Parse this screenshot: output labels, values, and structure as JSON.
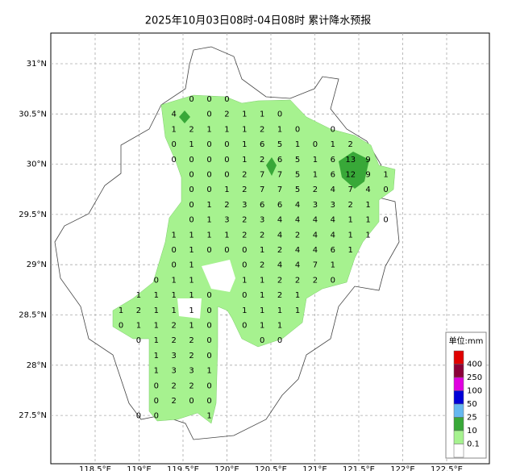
{
  "header": {
    "title": "2025年10月03日08时-04日08时 累计降水预报"
  },
  "map": {
    "lat_labels": [
      "31°N",
      "30.5°N",
      "30°N",
      "29.5°N",
      "29°N",
      "28.5°N",
      "28°N",
      "27.5°N"
    ],
    "lon_labels": [
      "118.5°E",
      "119°E",
      "119.5°E",
      "120°E",
      "120.5°E",
      "121°E",
      "121.5°E",
      "122°E",
      "122.5°E"
    ],
    "rows": [
      [
        null,
        null,
        null,
        null,
        0,
        0,
        0,
        null,
        null,
        null,
        null,
        null,
        null,
        null,
        null,
        null
      ],
      [
        null,
        null,
        null,
        4,
        null,
        0,
        2,
        1,
        1,
        0,
        null,
        null,
        null,
        null,
        null,
        null
      ],
      [
        null,
        null,
        null,
        1,
        2,
        1,
        1,
        1,
        2,
        1,
        0,
        null,
        0,
        null,
        null,
        null
      ],
      [
        null,
        null,
        null,
        0,
        1,
        0,
        0,
        1,
        6,
        5,
        1,
        0,
        1,
        2,
        null,
        null
      ],
      [
        null,
        null,
        null,
        0,
        0,
        0,
        0,
        1,
        2,
        6,
        5,
        1,
        6,
        13,
        9,
        null
      ],
      [
        null,
        null,
        null,
        null,
        0,
        0,
        0,
        2,
        7,
        7,
        5,
        1,
        6,
        12,
        9,
        1
      ],
      [
        null,
        null,
        null,
        null,
        0,
        0,
        1,
        2,
        7,
        7,
        5,
        2,
        4,
        7,
        4,
        0
      ],
      [
        null,
        null,
        null,
        null,
        0,
        1,
        2,
        3,
        6,
        6,
        4,
        3,
        3,
        2,
        1,
        null
      ],
      [
        null,
        null,
        null,
        null,
        0,
        1,
        3,
        2,
        3,
        4,
        4,
        4,
        4,
        1,
        1,
        0
      ],
      [
        null,
        null,
        null,
        1,
        1,
        1,
        1,
        2,
        2,
        4,
        2,
        4,
        4,
        1,
        1,
        null
      ],
      [
        null,
        null,
        null,
        0,
        1,
        0,
        0,
        0,
        1,
        2,
        4,
        4,
        6,
        1,
        null,
        null
      ],
      [
        null,
        null,
        null,
        0,
        1,
        null,
        null,
        0,
        2,
        4,
        4,
        7,
        1,
        null,
        null,
        null
      ],
      [
        null,
        null,
        0,
        1,
        1,
        null,
        null,
        1,
        1,
        2,
        2,
        2,
        0,
        null,
        null,
        null
      ],
      [
        null,
        1,
        1,
        1,
        1,
        0,
        null,
        0,
        1,
        2,
        1,
        null,
        null,
        null,
        null,
        null
      ],
      [
        1,
        2,
        1,
        1,
        1,
        0,
        null,
        1,
        1,
        1,
        1,
        null,
        null,
        null,
        null,
        null
      ],
      [
        0,
        1,
        1,
        2,
        1,
        0,
        null,
        0,
        1,
        1,
        null,
        null,
        null,
        null,
        null,
        null
      ],
      [
        null,
        0,
        1,
        2,
        2,
        0,
        null,
        null,
        0,
        0,
        null,
        null,
        null,
        null,
        null,
        null
      ],
      [
        null,
        null,
        1,
        3,
        2,
        0,
        null,
        null,
        null,
        null,
        null,
        null,
        null,
        null,
        null,
        null
      ],
      [
        null,
        null,
        1,
        3,
        3,
        1,
        null,
        null,
        null,
        null,
        null,
        null,
        null,
        null,
        null,
        null
      ],
      [
        null,
        null,
        0,
        2,
        2,
        0,
        null,
        null,
        null,
        null,
        null,
        null,
        null,
        null,
        null,
        null
      ],
      [
        null,
        null,
        0,
        2,
        0,
        0,
        null,
        null,
        null,
        null,
        null,
        null,
        null,
        null,
        null,
        null
      ],
      [
        null,
        0,
        0,
        null,
        null,
        1,
        null,
        null,
        null,
        null,
        null,
        null,
        null,
        null,
        null,
        null
      ]
    ]
  },
  "legend": {
    "title": "单位:mm",
    "colors": [
      "#e00000",
      "#8b0038",
      "#e000e0",
      "#0000d8",
      "#66b8f0",
      "#38a838",
      "#a6f28f",
      "#ffffff"
    ],
    "labels": [
      "400",
      "250",
      "100",
      "50",
      "25",
      "10",
      "0.1"
    ]
  }
}
